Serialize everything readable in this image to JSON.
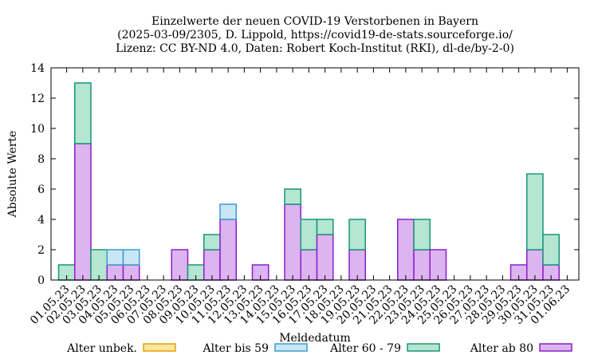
{
  "chart_data": {
    "type": "bar",
    "stacked": true,
    "title": [
      "Einzelwerte der neuen COVID-19 Verstorbenen in Bayern",
      "(2025-03-09/2305, D. Lippold, https://covid19-de-stats.sourceforge.io/",
      "Lizenz: CC BY-ND 4.0, Daten: Robert Koch-Institut (RKI), dl-de/by-2-0)"
    ],
    "xlabel": "Meldedatum",
    "ylabel": "Absolute Werte",
    "ylim": [
      0,
      14
    ],
    "yticks": [
      0,
      2,
      4,
      6,
      8,
      10,
      12,
      14
    ],
    "grid": false,
    "legend_position": "bottom",
    "categories": [
      "01.05.23",
      "02.05.23",
      "03.05.23",
      "04.05.23",
      "05.05.23",
      "06.05.23",
      "07.05.23",
      "08.05.23",
      "09.05.23",
      "10.05.23",
      "11.05.23",
      "12.05.23",
      "13.05.23",
      "14.05.23",
      "15.05.23",
      "16.05.23",
      "17.05.23",
      "18.05.23",
      "19.05.23",
      "20.05.23",
      "21.05.23",
      "22.05.23",
      "23.05.23",
      "24.05.23",
      "25.05.23",
      "26.05.23",
      "27.05.23",
      "28.05.23",
      "29.05.23",
      "30.05.23",
      "31.05.23",
      "01.06.23"
    ],
    "series": [
      {
        "name": "Alter ab 80",
        "fill": "#dcb4f0",
        "stroke": "#8c1ec8",
        "values": [
          0,
          9,
          0,
          1,
          1,
          0,
          0,
          2,
          0,
          2,
          4,
          0,
          1,
          0,
          5,
          2,
          3,
          0,
          2,
          0,
          0,
          4,
          2,
          2,
          0,
          0,
          0,
          0,
          1,
          2,
          1,
          0
        ]
      },
      {
        "name": "Alter 60 - 79",
        "fill": "#b4e6d2",
        "stroke": "#189678",
        "values": [
          1,
          4,
          2,
          0,
          0,
          0,
          0,
          0,
          1,
          1,
          0,
          0,
          0,
          0,
          1,
          2,
          1,
          0,
          2,
          0,
          0,
          0,
          2,
          0,
          0,
          0,
          0,
          0,
          0,
          5,
          2,
          0
        ]
      },
      {
        "name": "Alter bis 59",
        "fill": "#c8e6f5",
        "stroke": "#3c9ec8",
        "values": [
          0,
          0,
          0,
          1,
          1,
          0,
          0,
          0,
          0,
          0,
          1,
          0,
          0,
          0,
          0,
          0,
          0,
          0,
          0,
          0,
          0,
          0,
          0,
          0,
          0,
          0,
          0,
          0,
          0,
          0,
          0,
          0
        ]
      },
      {
        "name": "Alter unbek.",
        "fill": "#fae6a0",
        "stroke": "#e6a000",
        "values": [
          0,
          0,
          0,
          0,
          0,
          0,
          0,
          0,
          0,
          0,
          0,
          0,
          0,
          0,
          0,
          0,
          0,
          0,
          0,
          0,
          0,
          0,
          0,
          0,
          0,
          0,
          0,
          0,
          0,
          0,
          0,
          0
        ]
      }
    ],
    "legend_order": [
      "Alter unbek.",
      "Alter bis 59",
      "Alter 60 - 79",
      "Alter ab 80"
    ]
  }
}
